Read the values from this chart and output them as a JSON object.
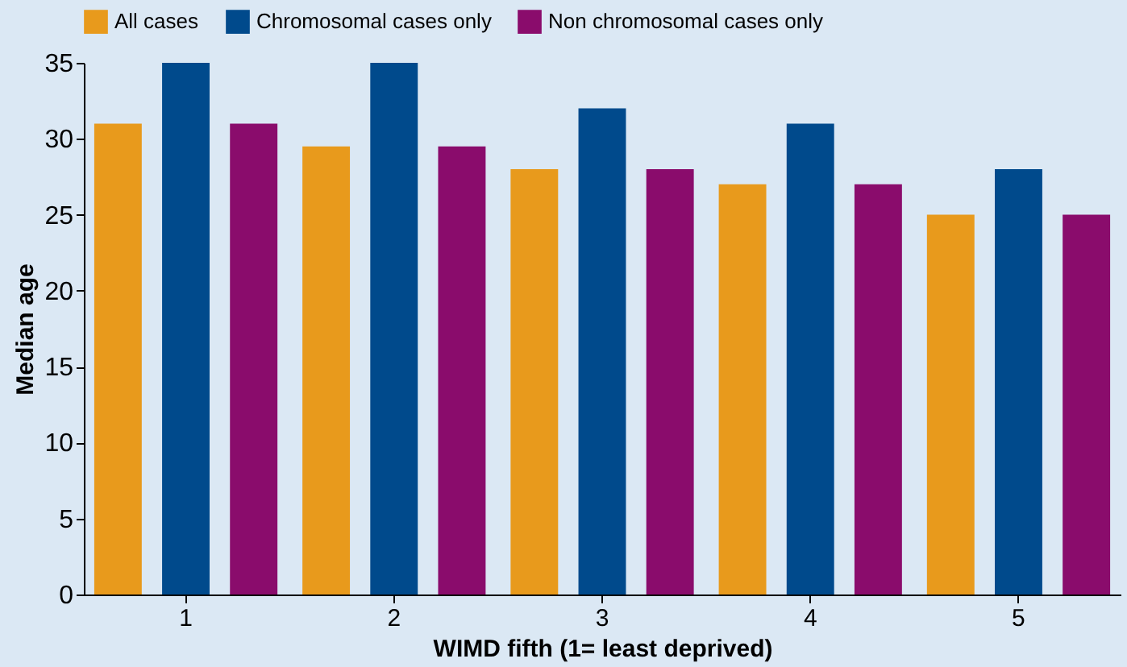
{
  "chart_data": {
    "type": "bar",
    "xlabel": "WIMD fifth (1= least deprived)",
    "ylabel": "Median age",
    "categories": [
      "1",
      "2",
      "3",
      "4",
      "5"
    ],
    "series": [
      {
        "name": "All cases",
        "color": "#e89a1c",
        "values": [
          31,
          29.5,
          28,
          27,
          25
        ]
      },
      {
        "name": "Chromosomal cases only",
        "color": "#004a8c",
        "values": [
          35,
          35,
          32,
          31,
          28
        ]
      },
      {
        "name": "Non chromosomal cases only",
        "color": "#8a0c6c",
        "values": [
          31,
          29.5,
          28,
          27,
          25
        ]
      }
    ],
    "ylim": [
      0,
      35
    ],
    "yticks": [
      0,
      5,
      10,
      15,
      20,
      25,
      30,
      35
    ],
    "grid": false,
    "legend": "top"
  }
}
